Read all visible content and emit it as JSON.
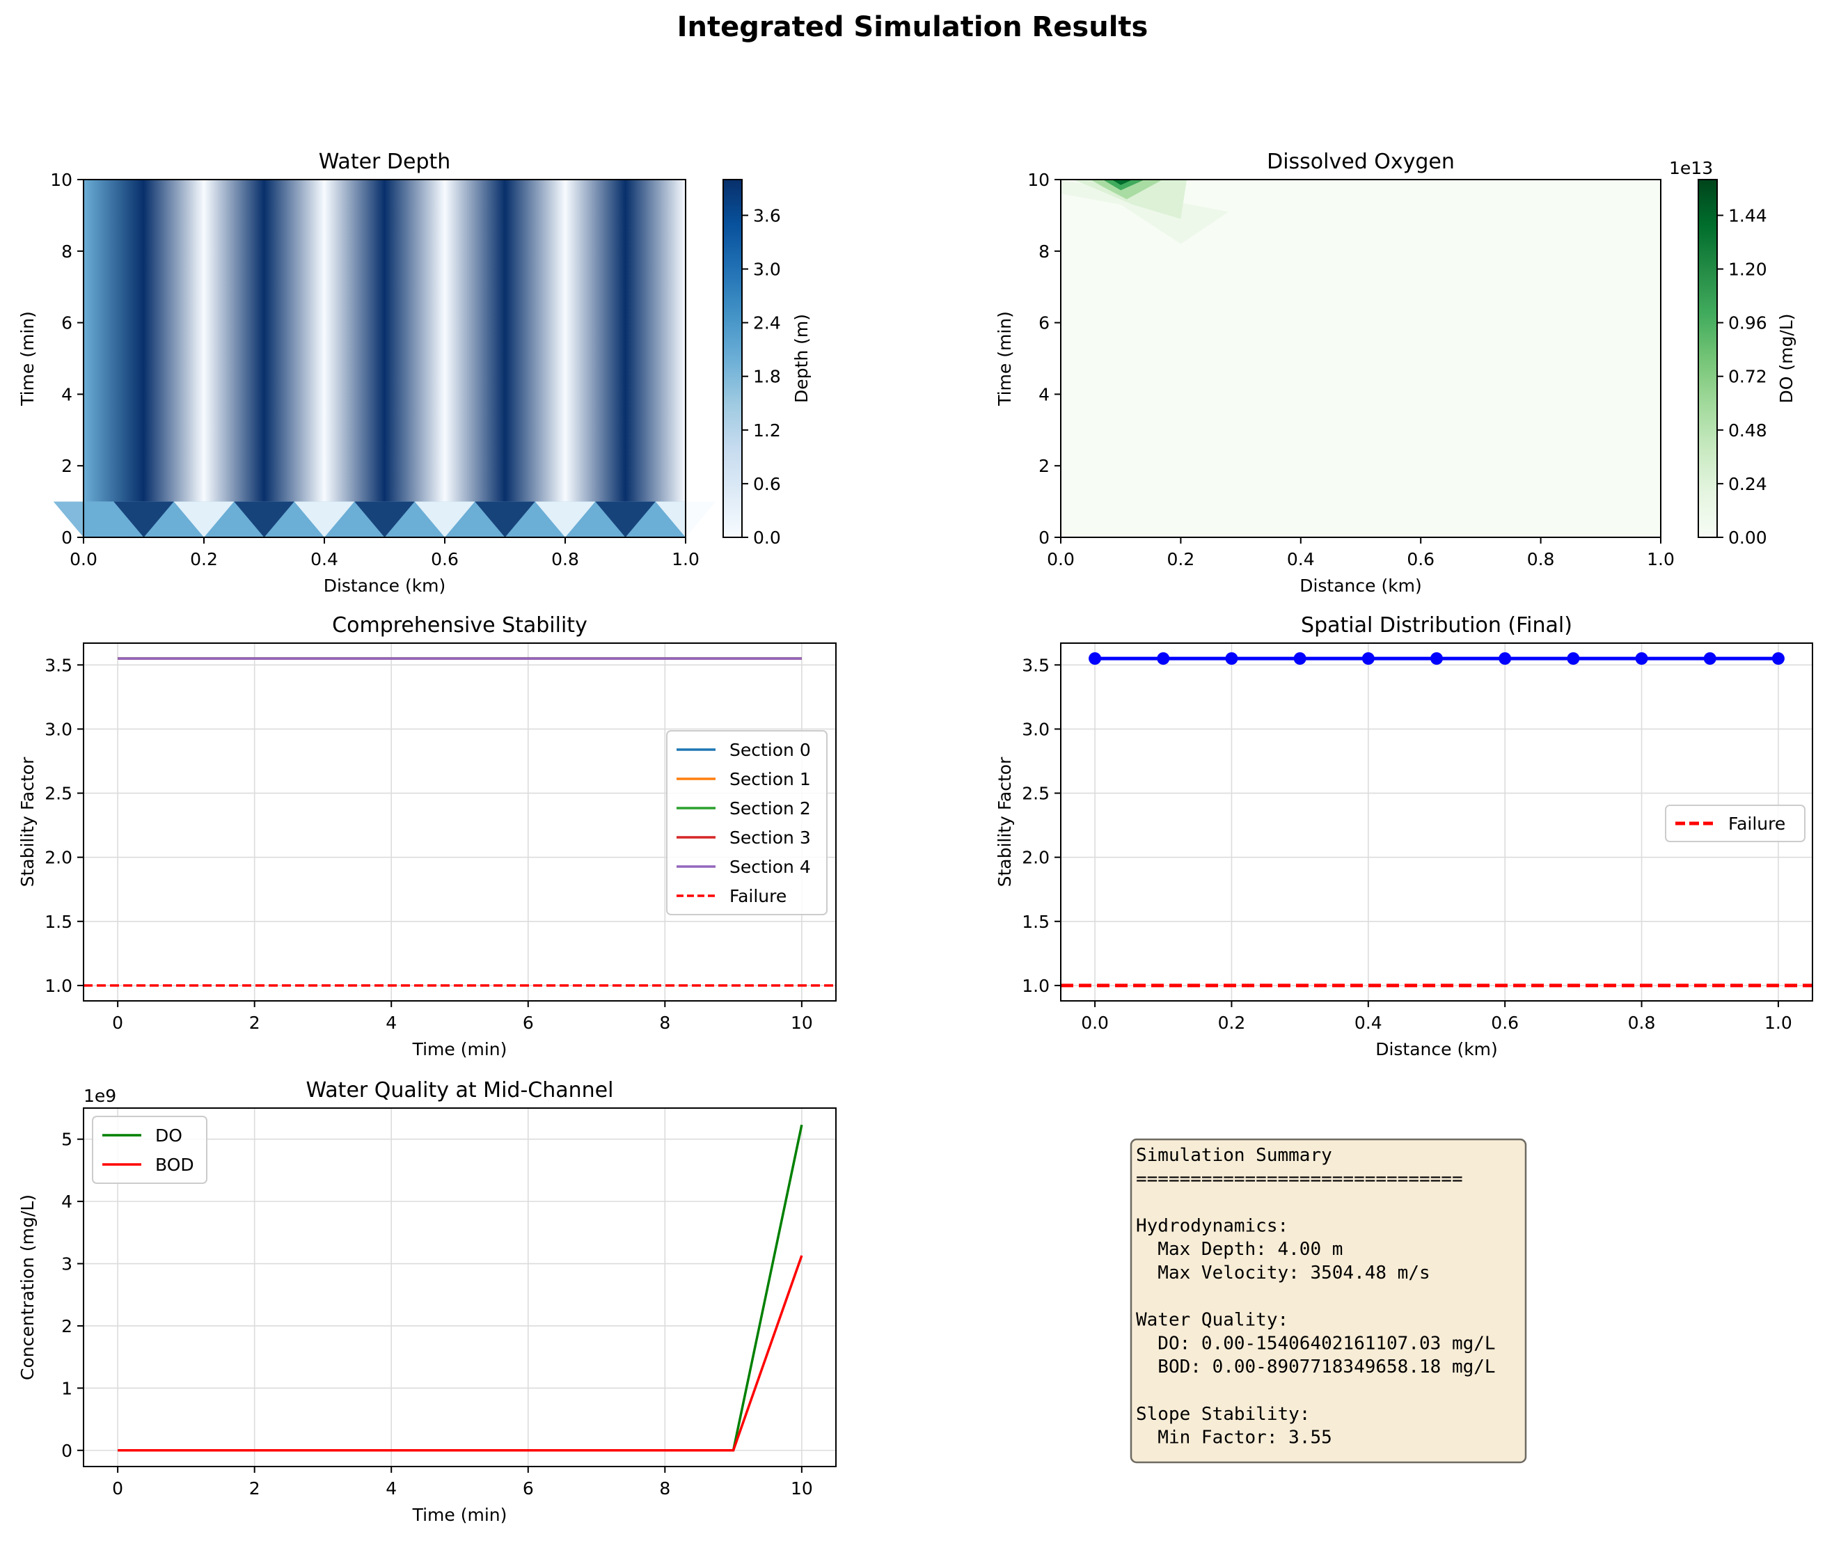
{
  "figure": {
    "suptitle": "Integrated Simulation Results"
  },
  "chart_data": [
    {
      "id": "depth",
      "type": "heatmap",
      "title": "Water Depth",
      "xlabel": "Distance (km)",
      "ylabel": "Time (min)",
      "xlim": [
        0,
        1
      ],
      "ylim": [
        0,
        10
      ],
      "xticks": [
        "0.0",
        "0.2",
        "0.4",
        "0.6",
        "0.8",
        "1.0"
      ],
      "yticks": [
        "0",
        "2",
        "4",
        "6",
        "8",
        "10"
      ],
      "colormap": "Blues",
      "colorbar": {
        "label": "Depth (m)",
        "range": [
          0,
          4
        ],
        "ticks": [
          "0.0",
          "0.6",
          "1.2",
          "1.8",
          "2.4",
          "3.0",
          "3.6"
        ],
        "tick_values": [
          0,
          0.6,
          1.2,
          1.8,
          2.4,
          3.0,
          3.6
        ]
      },
      "x": [
        0,
        0.1,
        0.2,
        0.3,
        0.4,
        0.5,
        0.6,
        0.7,
        0.8,
        0.9,
        1.0
      ],
      "final_depth": [
        2.0,
        4.0,
        0.0,
        4.0,
        0.0,
        4.0,
        0.0,
        4.0,
        0.0,
        4.0,
        0.0
      ],
      "initial_depth": 2.0
    },
    {
      "id": "do-map",
      "type": "heatmap",
      "title": "Dissolved Oxygen",
      "xlabel": "Distance (km)",
      "ylabel": "Time (min)",
      "xlim": [
        0,
        1
      ],
      "ylim": [
        0,
        10
      ],
      "xticks": [
        "0.0",
        "0.2",
        "0.4",
        "0.6",
        "0.8",
        "1.0"
      ],
      "yticks": [
        "0",
        "2",
        "4",
        "6",
        "8",
        "10"
      ],
      "colormap": "Greens",
      "colorbar": {
        "label": "DO (mg/L)",
        "offset_label": "1e13",
        "range": [
          0,
          1.6
        ],
        "ticks": [
          "0.00",
          "0.24",
          "0.48",
          "0.72",
          "0.96",
          "1.20",
          "1.44"
        ],
        "tick_values": [
          0,
          0.24,
          0.48,
          0.72,
          0.96,
          1.2,
          1.44
        ]
      },
      "peak": {
        "x": 0.1,
        "y": 10,
        "value": 1.54
      }
    },
    {
      "id": "stability",
      "type": "line",
      "title": "Comprehensive Stability",
      "xlabel": "Time (min)",
      "ylabel": "Stability Factor",
      "xlim": [
        -0.5,
        10.5
      ],
      "ylim": [
        0.88,
        3.67
      ],
      "xticks": [
        0,
        2,
        4,
        6,
        8,
        10
      ],
      "yticks": [
        1.0,
        1.5,
        2.0,
        2.5,
        3.0,
        3.5
      ],
      "ytick_labels": [
        "1.0",
        "1.5",
        "2.0",
        "2.5",
        "3.0",
        "3.5"
      ],
      "grid": true,
      "legend_position": "center-right",
      "series": [
        {
          "name": "Section 0",
          "color": "#1f77b4",
          "x": [
            0,
            10
          ],
          "values": [
            3.55,
            3.55
          ]
        },
        {
          "name": "Section 1",
          "color": "#ff7f0e",
          "x": [
            0,
            10
          ],
          "values": [
            3.55,
            3.55
          ]
        },
        {
          "name": "Section 2",
          "color": "#2ca02c",
          "x": [
            0,
            10
          ],
          "values": [
            3.55,
            3.55
          ]
        },
        {
          "name": "Section 3",
          "color": "#d62728",
          "x": [
            0,
            10
          ],
          "values": [
            3.55,
            3.55
          ]
        },
        {
          "name": "Section 4",
          "color": "#9467bd",
          "x": [
            0,
            10
          ],
          "values": [
            3.55,
            3.55
          ]
        }
      ],
      "reference_line": {
        "name": "Failure",
        "value": 1.0,
        "color": "#ff0000",
        "style": "dashed"
      }
    },
    {
      "id": "spatial",
      "type": "line",
      "title": "Spatial Distribution (Final)",
      "xlabel": "Distance (km)",
      "ylabel": "Stability Factor",
      "xlim": [
        -0.05,
        1.05
      ],
      "ylim": [
        0.88,
        3.67
      ],
      "xticks": [
        0,
        0.2,
        0.4,
        0.6,
        0.8,
        1.0
      ],
      "xtick_labels": [
        "0.0",
        "0.2",
        "0.4",
        "0.6",
        "0.8",
        "1.0"
      ],
      "yticks": [
        1.0,
        1.5,
        2.0,
        2.5,
        3.0,
        3.5
      ],
      "ytick_labels": [
        "1.0",
        "1.5",
        "2.0",
        "2.5",
        "3.0",
        "3.5"
      ],
      "grid": true,
      "legend_position": "center-right",
      "series": [
        {
          "color": "#0000ff",
          "x": [
            0,
            0.1,
            0.2,
            0.3,
            0.4,
            0.5,
            0.6,
            0.7,
            0.8,
            0.9,
            1.0
          ],
          "values": [
            3.55,
            3.55,
            3.55,
            3.55,
            3.55,
            3.55,
            3.55,
            3.55,
            3.55,
            3.55,
            3.55
          ]
        }
      ],
      "reference_line": {
        "name": "Failure",
        "value": 1.0,
        "color": "#ff0000",
        "style": "dashed"
      }
    },
    {
      "id": "quality",
      "type": "line",
      "title": "Water Quality at Mid-Channel",
      "xlabel": "Time (min)",
      "ylabel": "Concentration (mg/L)",
      "offset_label": "1e9",
      "xlim": [
        -0.5,
        10.5
      ],
      "ylim": [
        -0.26,
        5.5
      ],
      "xticks": [
        0,
        2,
        4,
        6,
        8,
        10
      ],
      "yticks": [
        0,
        1,
        2,
        3,
        4,
        5
      ],
      "grid": true,
      "legend_position": "top-left",
      "series": [
        {
          "name": "DO",
          "color": "#008000",
          "x": [
            0,
            1,
            2,
            3,
            4,
            5,
            6,
            7,
            8,
            9,
            10
          ],
          "values": [
            0,
            0,
            0,
            0,
            0,
            0,
            0,
            0,
            0,
            0,
            5.23
          ]
        },
        {
          "name": "BOD",
          "color": "#ff0000",
          "x": [
            0,
            1,
            2,
            3,
            4,
            5,
            6,
            7,
            8,
            9,
            10
          ],
          "values": [
            0,
            0,
            0,
            0,
            0,
            0,
            0,
            0,
            0,
            0,
            3.13
          ]
        }
      ]
    }
  ],
  "summary": {
    "lines": [
      "Simulation Summary",
      "==============================",
      "",
      "Hydrodynamics:",
      "  Max Depth: 4.00 m",
      "  Max Velocity: 3504.48 m/s",
      "",
      "Water Quality:",
      "  DO: 0.00-15406402161107.03 mg/L",
      "  BOD: 0.00-8907718349658.18 mg/L",
      "",
      "Slope Stability:",
      "  Min Factor: 3.55"
    ],
    "background": "#f7ecd6",
    "border": "#6e6a62"
  }
}
